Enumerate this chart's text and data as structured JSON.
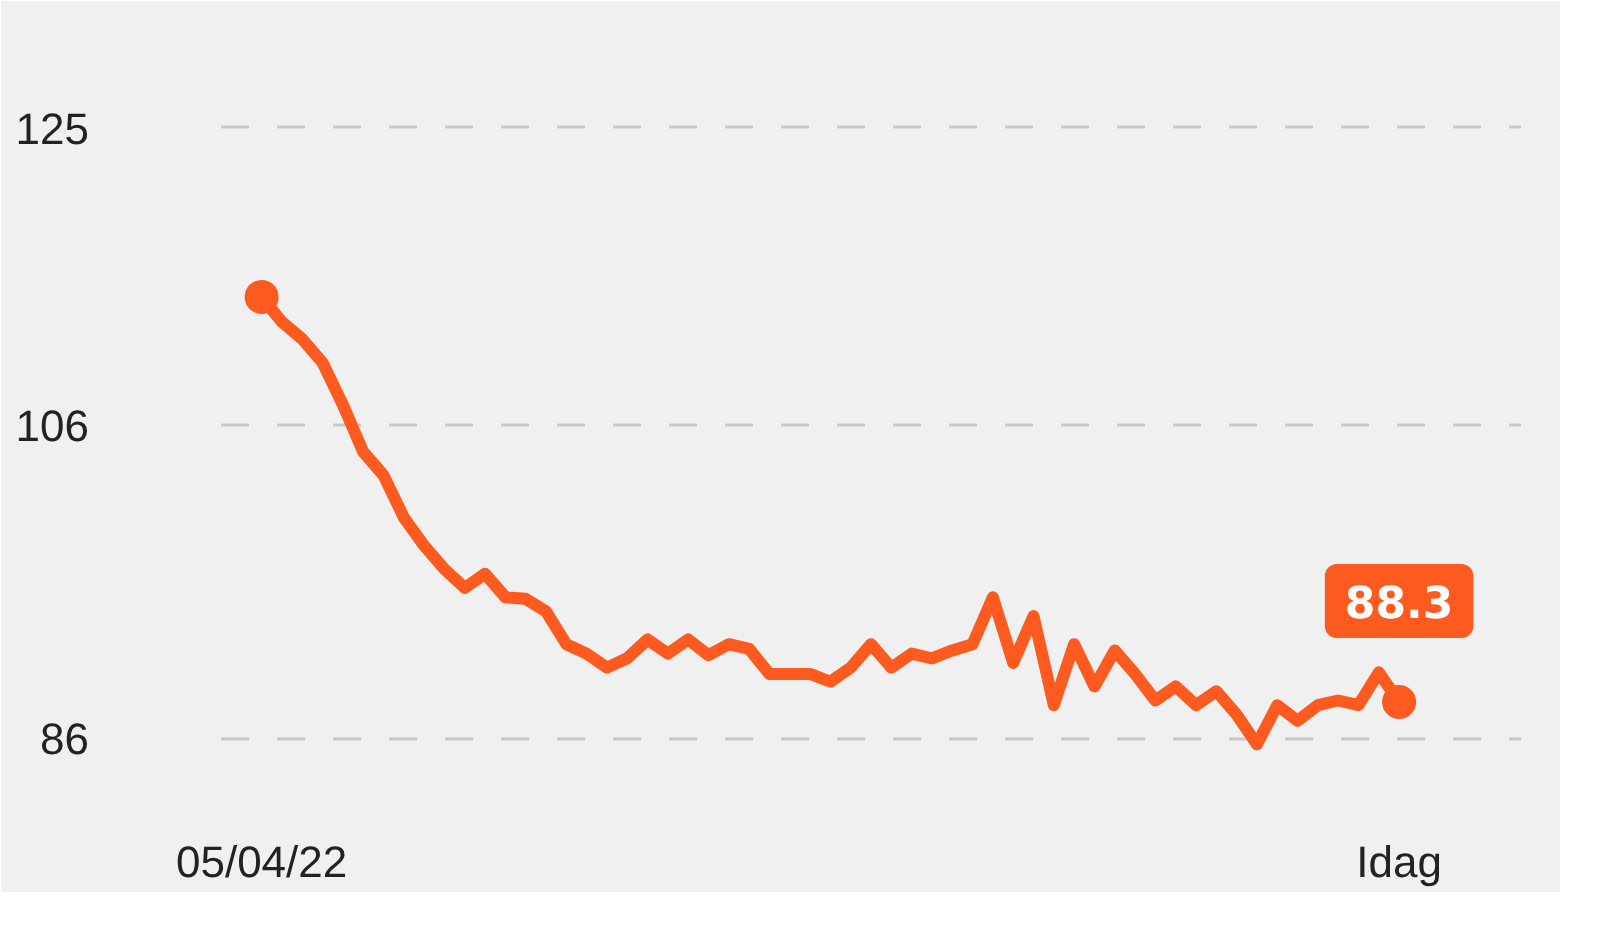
{
  "chart_data": {
    "type": "line",
    "categories": [
      "05/04/22",
      null,
      null,
      null,
      null,
      null,
      null,
      null,
      null,
      null,
      null,
      null,
      null,
      null,
      null,
      null,
      null,
      null,
      null,
      null,
      null,
      null,
      null,
      null,
      null,
      null,
      null,
      null,
      null,
      null,
      null,
      null,
      null,
      null,
      null,
      null,
      null,
      null,
      null,
      null,
      null,
      null,
      null,
      null,
      null,
      null,
      null,
      null,
      null,
      null,
      null,
      null,
      null,
      null,
      null,
      null,
      "Idag"
    ],
    "series": [
      {
        "color": "#fc5a1f",
        "values": [
          114.2,
          112.6,
          111.5,
          110,
          107.3,
          104.3,
          102.8,
          100.1,
          98.3,
          96.8,
          95.6,
          96.5,
          95,
          94.9,
          94.1,
          92,
          91.4,
          90.5,
          91.1,
          92.3,
          91.4,
          92.3,
          91.3,
          92,
          91.7,
          90.1,
          90.1,
          90.1,
          89.6,
          90.5,
          92,
          90.5,
          91.4,
          91.1,
          91.6,
          92,
          95,
          90.8,
          93.8,
          88.1,
          92,
          89.3,
          91.6,
          90.1,
          88.4,
          89.3,
          88.1,
          89,
          87.5,
          85.6,
          88.1,
          87.1,
          88.1,
          88.4,
          88.1,
          90.2,
          88.3
        ],
        "value_labels": [
          null,
          null,
          null,
          null,
          null,
          null,
          null,
          null,
          null,
          null,
          null,
          null,
          null,
          null,
          null,
          null,
          null,
          null,
          null,
          null,
          null,
          null,
          null,
          null,
          null,
          null,
          null,
          null,
          null,
          null,
          null,
          null,
          null,
          null,
          null,
          null,
          null,
          null,
          null,
          null,
          null,
          null,
          null,
          null,
          null,
          null,
          null,
          null,
          null,
          null,
          null,
          null,
          null,
          null,
          null,
          null,
          "88.3"
        ]
      }
    ],
    "ylim": [
      83,
      128
    ],
    "yticks": [
      86,
      106,
      125
    ],
    "grid": "y",
    "line_style": "solid"
  }
}
